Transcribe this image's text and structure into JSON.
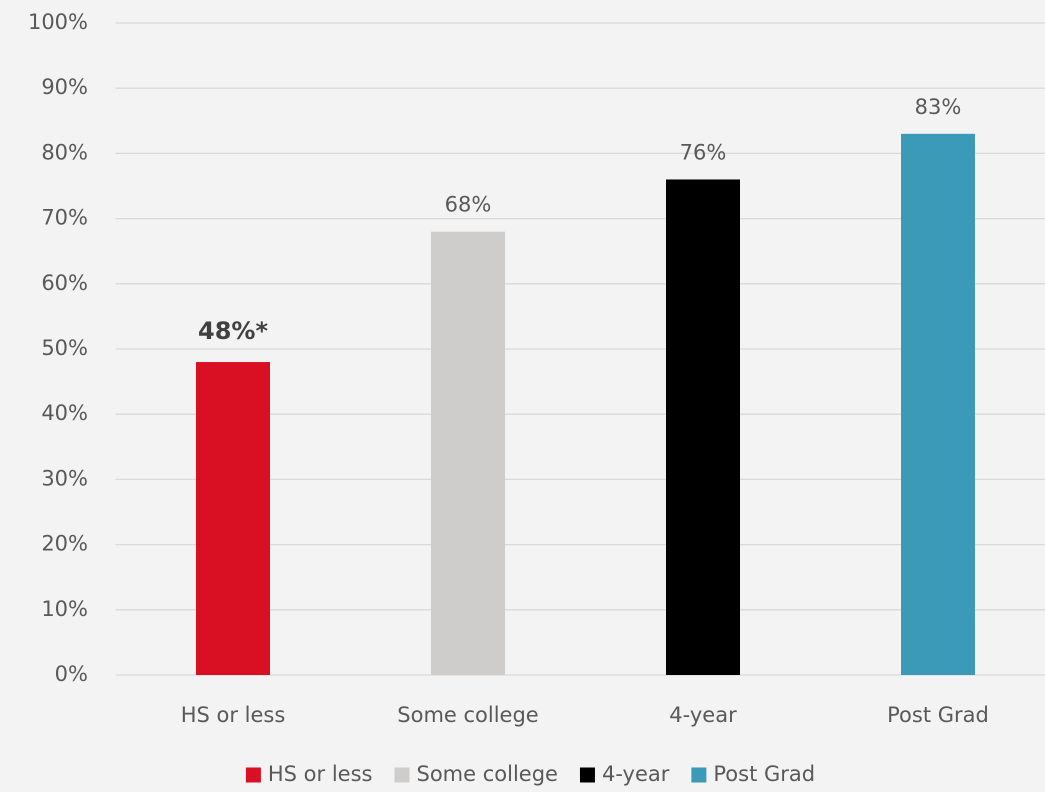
{
  "chart_data": {
    "type": "bar",
    "categories": [
      "HS or less",
      "Some college",
      "4-year",
      "Post Grad"
    ],
    "values": [
      48,
      68,
      76,
      83
    ],
    "value_labels": [
      "48%*",
      "68%",
      "76%",
      "83%"
    ],
    "value_label_bold": [
      true,
      false,
      false,
      false
    ],
    "colors": [
      "#d91023",
      "#cfcdcb",
      "#000000",
      "#3a9ab8"
    ],
    "ylim": [
      0,
      100
    ],
    "yticks": [
      {
        "value": 0,
        "label": "0%"
      },
      {
        "value": 10,
        "label": "10%"
      },
      {
        "value": 20,
        "label": "20%"
      },
      {
        "value": 30,
        "label": "30%"
      },
      {
        "value": 40,
        "label": "40%"
      },
      {
        "value": 50,
        "label": "50%"
      },
      {
        "value": 60,
        "label": "60%"
      },
      {
        "value": 70,
        "label": "70%"
      },
      {
        "value": 80,
        "label": "80%"
      },
      {
        "value": 90,
        "label": "90%"
      },
      {
        "value": 100,
        "label": "100%"
      }
    ],
    "grid": true,
    "legend": "bottom"
  }
}
